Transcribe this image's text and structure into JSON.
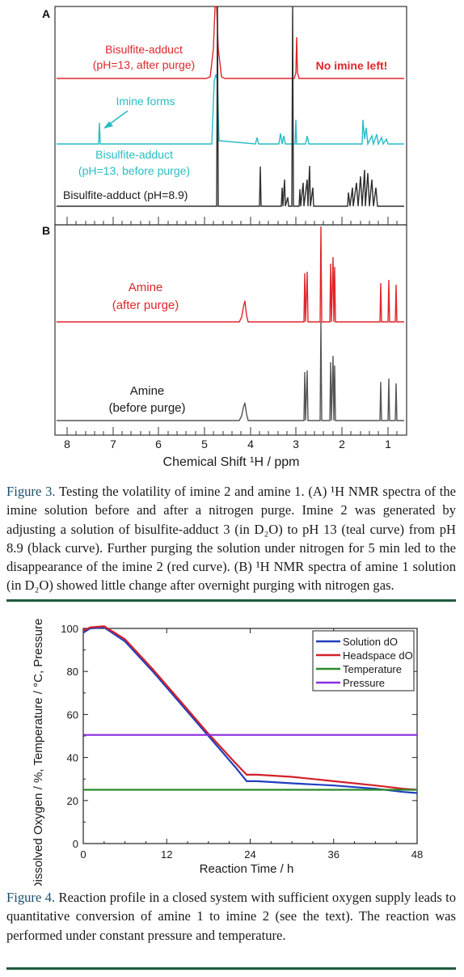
{
  "figure3": {
    "panel_a_label": "A",
    "panel_b_label": "B",
    "red_label_line1": "Bisulfite-adduct",
    "red_label_line2": "(pH=13, after purge)",
    "no_imine_label": "No imine left!",
    "imine_forms_label": "Imine forms",
    "teal_label_line1": "Bisulfite-adduct",
    "teal_label_line2": "(pH=13, before purge)",
    "black_label": "Bisulfite-adduct (pH=8.9)",
    "amine_after_line1": "Amine",
    "amine_after_line2": "(after purge)",
    "amine_before_line1": "Amine",
    "amine_before_line2": "(before purge)",
    "x_ticks": [
      "8",
      "7",
      "6",
      "5",
      "4",
      "3",
      "2",
      "1"
    ],
    "x_axis_label": "Chemical Shift ¹H / ppm",
    "colors": {
      "red": "#e0262b",
      "teal": "#27bcc3",
      "black": "#2e2e2e",
      "gray": "#555555"
    }
  },
  "caption3": {
    "label": "Figure 3.",
    "text": "Testing the volatility of imine 2 and amine 1. (A) ¹H NMR spectra of the imine solution before and after a nitrogen purge. Imine 2 was generated by adjusting a solution of bisulfite-adduct 3 (in D₂O) to pH 13 (teal curve) from pH 8.9 (black curve). Further purging the solution under nitrogen for 5 min led to the disappearance of the imine 2 (red curve). (B) ¹H NMR spectra of amine 1 solution (in D₂O) showed little change after overnight purging with nitrogen gas."
  },
  "chart_data": {
    "type": "line",
    "title": "",
    "xlabel": "Reaction Time / h",
    "ylabel": "Dissolved Oxygen / %, Temperature / °C, Pressure / psig",
    "xlim": [
      0,
      48
    ],
    "ylim": [
      0,
      100
    ],
    "x_ticks": [
      0,
      12,
      24,
      36,
      48
    ],
    "y_ticks": [
      0,
      20,
      40,
      60,
      80,
      100
    ],
    "legend_position": "top-right",
    "series": [
      {
        "name": "Solution dO",
        "color": "#1f3fbf",
        "points": [
          [
            0,
            98
          ],
          [
            1,
            100
          ],
          [
            3,
            100.5
          ],
          [
            6,
            94
          ],
          [
            10,
            80
          ],
          [
            14,
            65
          ],
          [
            18,
            50
          ],
          [
            22,
            35
          ],
          [
            23.5,
            29
          ],
          [
            25,
            29
          ],
          [
            30,
            28
          ],
          [
            36,
            27
          ],
          [
            42,
            25.5
          ],
          [
            46,
            24
          ],
          [
            48,
            23.5
          ]
        ]
      },
      {
        "name": "Headspace dO",
        "color": "#d4202a",
        "points": [
          [
            0,
            99
          ],
          [
            1,
            100.5
          ],
          [
            3,
            101
          ],
          [
            6,
            95
          ],
          [
            10,
            81
          ],
          [
            14,
            66
          ],
          [
            18,
            51
          ],
          [
            22,
            37
          ],
          [
            23.5,
            32
          ],
          [
            25,
            32
          ],
          [
            30,
            31
          ],
          [
            36,
            29
          ],
          [
            42,
            27
          ],
          [
            46,
            25.5
          ],
          [
            48,
            25
          ]
        ]
      },
      {
        "name": "Temperature",
        "color": "#2a8a2a",
        "points": [
          [
            0,
            25
          ],
          [
            12,
            25
          ],
          [
            24,
            25
          ],
          [
            36,
            25
          ],
          [
            48,
            25
          ]
        ]
      },
      {
        "name": "Pressure",
        "color": "#8a2be2",
        "points": [
          [
            0,
            50.5
          ],
          [
            12,
            50.5
          ],
          [
            24,
            50.5
          ],
          [
            36,
            50.5
          ],
          [
            48,
            50.5
          ]
        ]
      }
    ]
  },
  "caption4": {
    "label": "Figure 4.",
    "text": "Reaction profile in a closed system with sufficient oxygen supply leads to quantitative conversion of amine 1 to imine 2 (see the text). The reaction was performed under constant pressure and temperature."
  }
}
